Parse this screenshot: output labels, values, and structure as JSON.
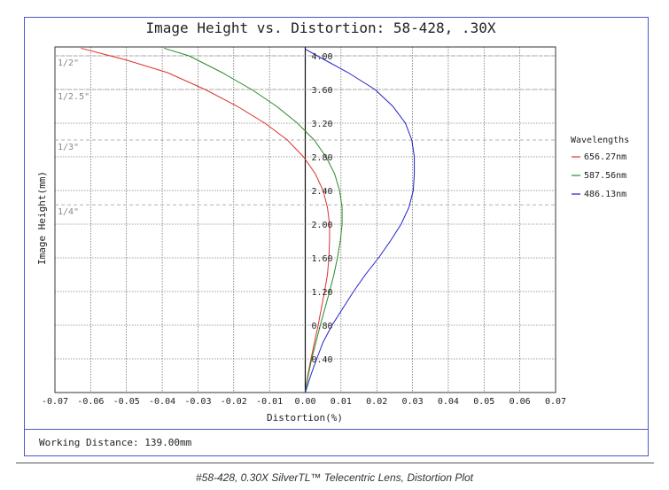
{
  "chart_data": {
    "type": "line",
    "title": "Image Height vs. Distortion: 58-428, .30X",
    "xlabel": "Distortion(%)",
    "ylabel": "Image Height(mm)",
    "xlim": [
      -0.07,
      0.07
    ],
    "ylim": [
      0,
      4.0
    ],
    "x_ticks": [
      "-0.07",
      "-0.06",
      "-0.05",
      "-0.04",
      "-0.03",
      "-0.02",
      "-0.01",
      "0.00",
      "0.01",
      "0.02",
      "0.03",
      "0.04",
      "0.05",
      "0.06",
      "0.07"
    ],
    "y_ticks": [
      "0.40",
      "0.80",
      "1.20",
      "1.60",
      "2.00",
      "2.40",
      "2.80",
      "3.20",
      "3.60",
      "4.00"
    ],
    "grid": true,
    "legend": {
      "title": "Wavelengths",
      "position": "right"
    },
    "sensor_formats": [
      {
        "label": "1/2\"",
        "y": 4.0
      },
      {
        "label": "1/2.5\"",
        "y": 3.6
      },
      {
        "label": "1/3\"",
        "y": 3.0
      },
      {
        "label": "1/4\"",
        "y": 2.23
      }
    ],
    "series": [
      {
        "name": "656.27nm",
        "color": "#e03030",
        "points": [
          [
            0,
            0
          ],
          [
            0.0007,
            0.2
          ],
          [
            0.0016,
            0.4
          ],
          [
            0.0026,
            0.6
          ],
          [
            0.0036,
            0.8
          ],
          [
            0.0045,
            1.0
          ],
          [
            0.0054,
            1.2
          ],
          [
            0.0062,
            1.4
          ],
          [
            0.0066,
            1.6
          ],
          [
            0.0068,
            1.8
          ],
          [
            0.0068,
            2.0
          ],
          [
            0.0062,
            2.2
          ],
          [
            0.005,
            2.4
          ],
          [
            0.0028,
            2.6
          ],
          [
            -0.0005,
            2.8
          ],
          [
            -0.005,
            3.0
          ],
          [
            -0.0113,
            3.2
          ],
          [
            -0.019,
            3.4
          ],
          [
            -0.028,
            3.6
          ],
          [
            -0.0385,
            3.8
          ],
          [
            -0.05,
            3.95
          ],
          [
            -0.0627,
            4.09
          ]
        ]
      },
      {
        "name": "587.56nm",
        "color": "#2a8a2a",
        "points": [
          [
            0,
            0
          ],
          [
            0.0008,
            0.2
          ],
          [
            0.0018,
            0.4
          ],
          [
            0.003,
            0.6
          ],
          [
            0.0042,
            0.8
          ],
          [
            0.0055,
            1.0
          ],
          [
            0.0068,
            1.2
          ],
          [
            0.008,
            1.4
          ],
          [
            0.009,
            1.6
          ],
          [
            0.0098,
            1.8
          ],
          [
            0.0103,
            2.0
          ],
          [
            0.0103,
            2.2
          ],
          [
            0.0096,
            2.4
          ],
          [
            0.0082,
            2.6
          ],
          [
            0.0058,
            2.8
          ],
          [
            0.0025,
            3.0
          ],
          [
            -0.0022,
            3.2
          ],
          [
            -0.008,
            3.4
          ],
          [
            -0.015,
            3.6
          ],
          [
            -0.0232,
            3.8
          ],
          [
            -0.0325,
            4.0
          ],
          [
            -0.0395,
            4.09
          ]
        ]
      },
      {
        "name": "486.13nm",
        "color": "#2020c8",
        "points": [
          [
            0,
            0
          ],
          [
            0.0015,
            0.2
          ],
          [
            0.0032,
            0.4
          ],
          [
            0.005,
            0.6
          ],
          [
            0.0075,
            0.8
          ],
          [
            0.0105,
            1.0
          ],
          [
            0.0135,
            1.2
          ],
          [
            0.0168,
            1.4
          ],
          [
            0.0205,
            1.6
          ],
          [
            0.0238,
            1.8
          ],
          [
            0.0268,
            2.0
          ],
          [
            0.029,
            2.2
          ],
          [
            0.0302,
            2.4
          ],
          [
            0.0305,
            2.6
          ],
          [
            0.0305,
            2.8
          ],
          [
            0.0298,
            3.0
          ],
          [
            0.028,
            3.2
          ],
          [
            0.0245,
            3.4
          ],
          [
            0.0195,
            3.6
          ],
          [
            0.012,
            3.8
          ],
          [
            0.0055,
            3.95
          ],
          [
            0.0,
            4.08
          ]
        ]
      }
    ]
  },
  "footer": {
    "working_distance": "Working Distance: 139.00mm"
  },
  "caption": "#58-428, 0.30X SilverTL™ Telecentric Lens, Distortion Plot"
}
